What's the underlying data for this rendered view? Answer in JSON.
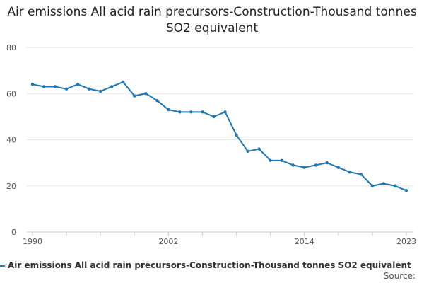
{
  "chart_data": {
    "type": "line",
    "title": "Air emissions All acid rain precursors-Construction-Thousand tonnes SO2 equivalent",
    "xlabel": "",
    "ylabel": "",
    "xlim": [
      1990,
      2023
    ],
    "ylim": [
      0,
      80
    ],
    "x_ticks": [
      "1990",
      "2002",
      "2014",
      "2023"
    ],
    "y_ticks": [
      "0",
      "20",
      "40",
      "60",
      "80"
    ],
    "grid": true,
    "legend_position": "bottom-left",
    "series": [
      {
        "name": "Air emissions All acid rain precursors-Construction-Thousand tonnes SO2 equivalent",
        "color": "#1f77b4",
        "x": [
          1990,
          1991,
          1992,
          1993,
          1994,
          1995,
          1996,
          1997,
          1998,
          1999,
          2000,
          2001,
          2002,
          2003,
          2004,
          2005,
          2006,
          2007,
          2008,
          2009,
          2010,
          2011,
          2012,
          2013,
          2014,
          2015,
          2016,
          2017,
          2018,
          2019,
          2020,
          2021,
          2022,
          2023
        ],
        "values": [
          64,
          63,
          63,
          62,
          64,
          62,
          61,
          63,
          65,
          59,
          60,
          57,
          53,
          52,
          52,
          52,
          50,
          52,
          42,
          35,
          36,
          31,
          31,
          29,
          28,
          29,
          30,
          28,
          26,
          25,
          20,
          21,
          20,
          18
        ]
      }
    ]
  },
  "source": {
    "label": "Source:"
  }
}
